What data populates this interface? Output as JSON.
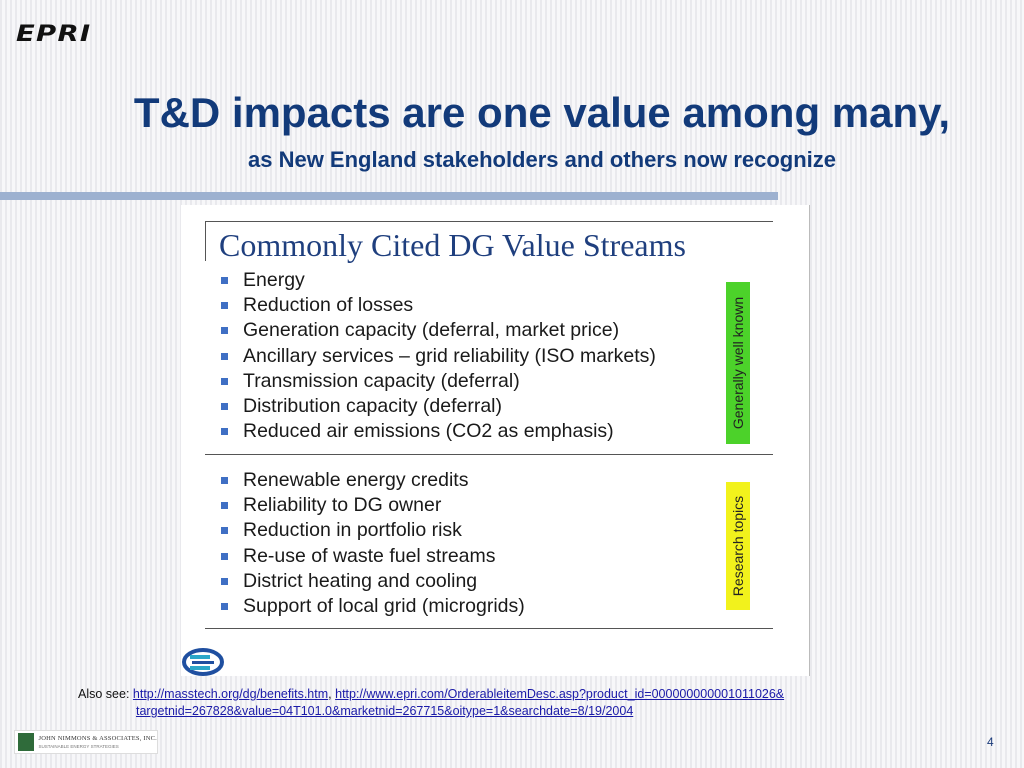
{
  "header": {
    "logo_text": "EPRI",
    "title": "T&D impacts are one value among many,",
    "subtitle": "as New England stakeholders and others now recognize"
  },
  "figure": {
    "title": "Commonly Cited DG Value Streams",
    "group1": {
      "tag": "Generally well known",
      "tag_color": "#4cd22a",
      "items": [
        "Energy",
        "Reduction of losses",
        "Generation capacity (deferral, market price)",
        "Ancillary services – grid reliability (ISO markets)",
        "Transmission capacity (deferral)",
        "Distribution capacity (deferral)",
        "Reduced air emissions (CO2 as emphasis)"
      ]
    },
    "group2": {
      "tag": "Research topics",
      "tag_color": "#f2f21c",
      "items": [
        "Renewable energy credits",
        "Reliability to DG owner",
        "Reduction in portfolio risk",
        "Re-use of waste fuel streams",
        "District heating and cooling",
        "Support of local grid (microgrids)"
      ]
    },
    "bullet_color": "#3f6fc4",
    "logo_icon": "e-circle-logo-icon"
  },
  "footer": {
    "also_label": "Also see:",
    "link1": "http://masstech.org/dg/benefits.htm",
    "separator": ",",
    "link2_line1": "http://www.epri.com/OrderableitemDesc.asp?product_id=000000000001011026&",
    "link2_line2": "targetnid=267828&value=04T101.0&marketnid=267715&oitype=1&searchdate=8/19/2004",
    "company_name": "JOHN NIMMONS & ASSOCIATES, INC.",
    "company_tagline": "SUSTAINABLE ENERGY STRATEGIES",
    "page_number": "4"
  },
  "colors": {
    "title": "#123a7a",
    "rule": "#9db1d0",
    "link": "#1a1aa8"
  }
}
